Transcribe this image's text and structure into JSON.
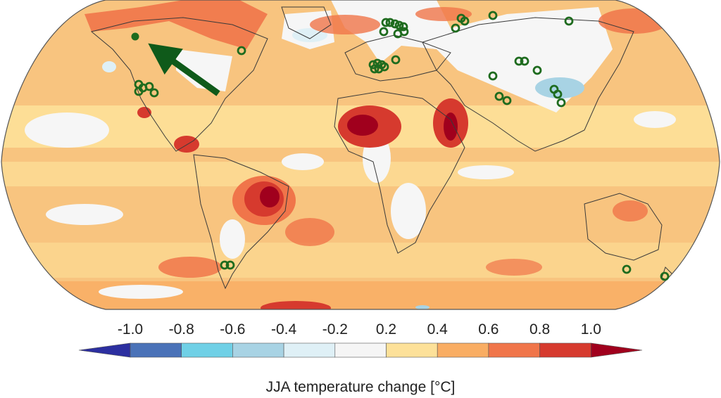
{
  "figure": {
    "colorbar_title": "JJA temperature change [°C]",
    "colorbar_ticks": [
      "-1.0",
      "-0.8",
      "-0.6",
      "-0.4",
      "-0.2",
      "0.2",
      "0.4",
      "0.6",
      "0.8",
      "1.0"
    ],
    "colorbar_colors": [
      "#4a72b8",
      "#6fd0e6",
      "#a8d3e4",
      "#dff0f6",
      "#f5f5f5",
      "#fde199",
      "#f9ad63",
      "#f0754a",
      "#d63a2e"
    ],
    "extend_low_color": "#2c2fa0",
    "extend_high_color": "#a0001d",
    "station_marker_color": "#1e6b1e",
    "arrow_color": "#0f5a1a",
    "colors": {
      "ocean_base": "#f8c47f",
      "land_cold": "#ffffff",
      "coastline": "#3a3a3a"
    }
  }
}
